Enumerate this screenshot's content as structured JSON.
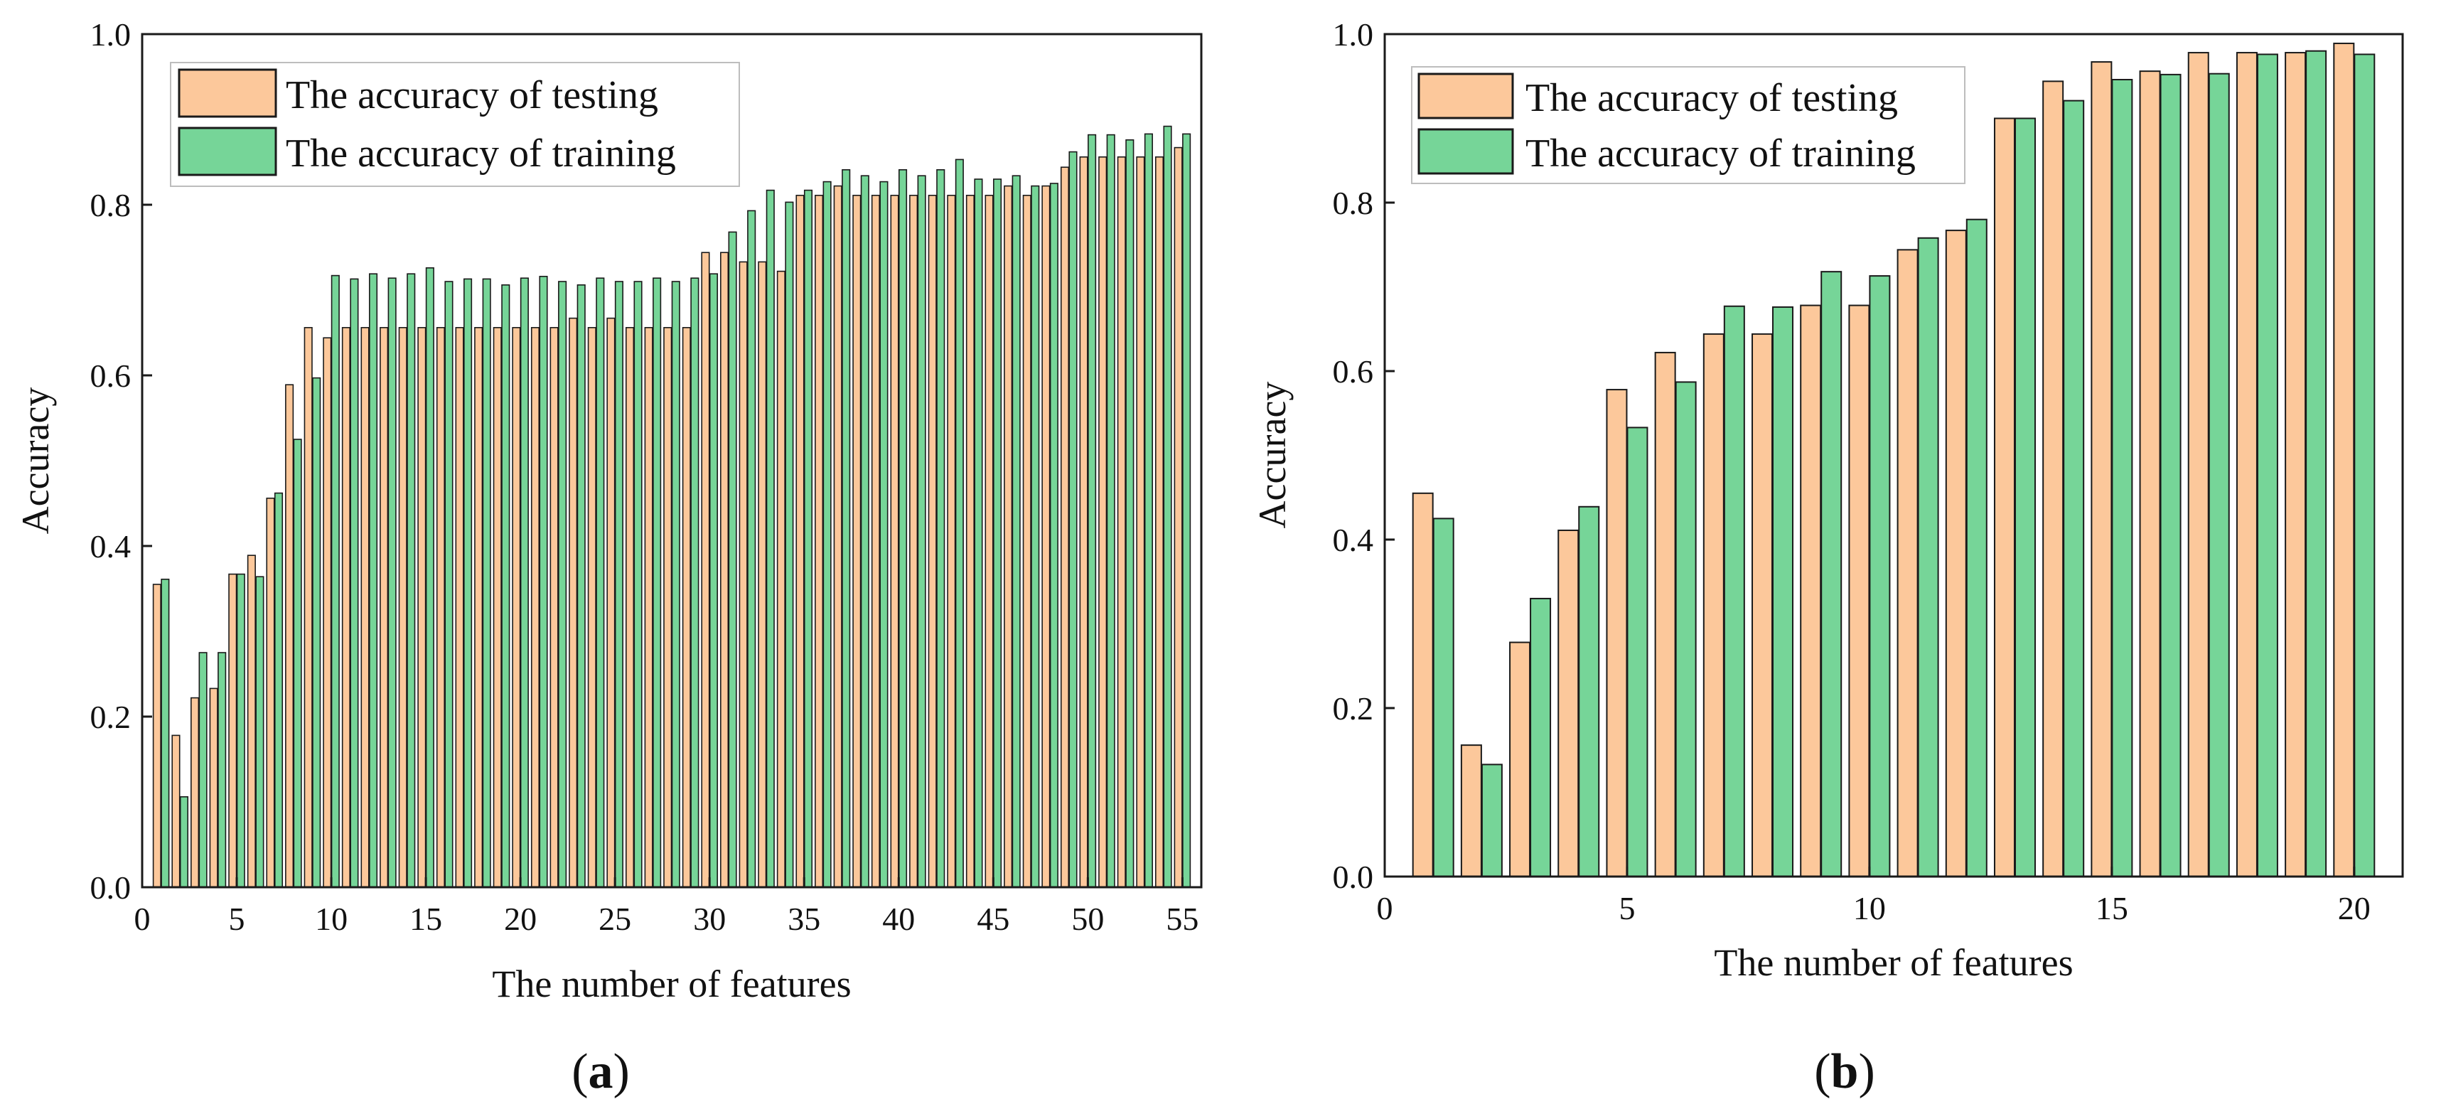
{
  "colors": {
    "testing": "#fcc89b",
    "training": "#76d598",
    "edge": "#1a1a1a",
    "background": "#ffffff"
  },
  "chart_data": [
    {
      "id": "a",
      "panel_label": {
        "open": "(",
        "letter": "a",
        "close": ")"
      },
      "type": "bar",
      "title": "",
      "xlabel": "The number of features",
      "ylabel": "Accuracy",
      "xlim": [
        0,
        56
      ],
      "ylim": [
        0,
        1.0
      ],
      "xticks": [
        0,
        5,
        10,
        15,
        20,
        25,
        30,
        35,
        40,
        45,
        50,
        55
      ],
      "yticks": [
        0.0,
        0.2,
        0.4,
        0.6,
        0.8,
        1.0
      ],
      "ytick_labels": [
        "0.0",
        "0.2",
        "0.4",
        "0.6",
        "0.8",
        "1.0"
      ],
      "legend_position": "top-left",
      "x": [
        1,
        2,
        3,
        4,
        5,
        6,
        7,
        8,
        9,
        10,
        11,
        12,
        13,
        14,
        15,
        16,
        17,
        18,
        19,
        20,
        21,
        22,
        23,
        24,
        25,
        26,
        27,
        28,
        29,
        30,
        31,
        32,
        33,
        34,
        35,
        36,
        37,
        38,
        39,
        40,
        41,
        42,
        43,
        44,
        45,
        46,
        47,
        48,
        49,
        50,
        51,
        52,
        53,
        54,
        55
      ],
      "series": [
        {
          "name": "The accuracy of testing",
          "color_key": "testing",
          "values": [
            0.355,
            0.178,
            0.222,
            0.233,
            0.367,
            0.389,
            0.456,
            0.589,
            0.656,
            0.644,
            0.656,
            0.656,
            0.656,
            0.656,
            0.656,
            0.656,
            0.656,
            0.656,
            0.656,
            0.656,
            0.656,
            0.656,
            0.667,
            0.656,
            0.667,
            0.656,
            0.656,
            0.656,
            0.656,
            0.744,
            0.744,
            0.733,
            0.733,
            0.722,
            0.811,
            0.811,
            0.822,
            0.811,
            0.811,
            0.811,
            0.811,
            0.811,
            0.811,
            0.811,
            0.811,
            0.822,
            0.811,
            0.822,
            0.844,
            0.856,
            0.856,
            0.856,
            0.856,
            0.856,
            0.867
          ]
        },
        {
          "name": "The accuracy of training",
          "color_key": "training",
          "values": [
            0.361,
            0.106,
            0.275,
            0.275,
            0.367,
            0.364,
            0.462,
            0.525,
            0.597,
            0.717,
            0.713,
            0.719,
            0.714,
            0.719,
            0.726,
            0.71,
            0.713,
            0.713,
            0.706,
            0.714,
            0.716,
            0.71,
            0.706,
            0.714,
            0.71,
            0.71,
            0.714,
            0.71,
            0.714,
            0.719,
            0.768,
            0.793,
            0.817,
            0.803,
            0.817,
            0.827,
            0.841,
            0.834,
            0.827,
            0.841,
            0.834,
            0.841,
            0.853,
            0.83,
            0.83,
            0.834,
            0.822,
            0.825,
            0.862,
            0.882,
            0.882,
            0.876,
            0.883,
            0.892,
            0.883
          ]
        }
      ]
    },
    {
      "id": "b",
      "panel_label": {
        "open": "(",
        "letter": "b",
        "close": ")"
      },
      "type": "bar",
      "title": "",
      "xlabel": "The number of features",
      "ylabel": "Accuracy",
      "xlim": [
        0,
        21
      ],
      "ylim": [
        0,
        1.0
      ],
      "xticks": [
        0,
        5,
        10,
        15,
        20
      ],
      "yticks": [
        0.0,
        0.2,
        0.4,
        0.6,
        0.8,
        1.0
      ],
      "ytick_labels": [
        "0.0",
        "0.2",
        "0.4",
        "0.6",
        "0.8",
        "1.0"
      ],
      "legend_position": "top-left",
      "x": [
        1,
        2,
        3,
        4,
        5,
        6,
        7,
        8,
        9,
        10,
        11,
        12,
        13,
        14,
        15,
        16,
        17,
        18,
        19,
        20
      ],
      "series": [
        {
          "name": "The accuracy of testing",
          "color_key": "testing",
          "values": [
            0.455,
            0.156,
            0.278,
            0.411,
            0.578,
            0.622,
            0.644,
            0.644,
            0.678,
            0.678,
            0.744,
            0.767,
            0.9,
            0.944,
            0.967,
            0.956,
            0.978,
            0.978,
            0.978,
            0.989
          ]
        },
        {
          "name": "The accuracy of training",
          "color_key": "training",
          "values": [
            0.425,
            0.133,
            0.33,
            0.439,
            0.533,
            0.587,
            0.677,
            0.676,
            0.718,
            0.713,
            0.758,
            0.78,
            0.9,
            0.921,
            0.946,
            0.952,
            0.953,
            0.976,
            0.98,
            0.976
          ]
        }
      ]
    }
  ]
}
